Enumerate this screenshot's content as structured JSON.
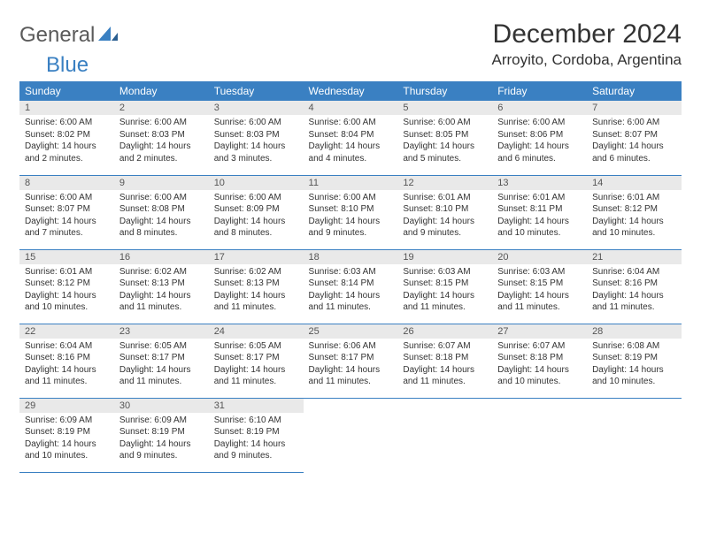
{
  "brand": {
    "part1": "General",
    "part2": "Blue"
  },
  "title": "December 2024",
  "location": "Arroyito, Cordoba, Argentina",
  "colors": {
    "header_bg": "#3a80c2",
    "header_text": "#ffffff",
    "daynum_bg": "#e9e9e9",
    "cell_border": "#3a80c2",
    "body_text": "#333333"
  },
  "font": {
    "family": "Arial",
    "header_size_pt": 9,
    "cell_size_pt": 7.5,
    "title_size_pt": 22.5,
    "location_size_pt": 12.8
  },
  "day_headers": [
    "Sunday",
    "Monday",
    "Tuesday",
    "Wednesday",
    "Thursday",
    "Friday",
    "Saturday"
  ],
  "weeks": [
    [
      {
        "day": "1",
        "sunrise": "Sunrise: 6:00 AM",
        "sunset": "Sunset: 8:02 PM",
        "daylight": "Daylight: 14 hours and 2 minutes."
      },
      {
        "day": "2",
        "sunrise": "Sunrise: 6:00 AM",
        "sunset": "Sunset: 8:03 PM",
        "daylight": "Daylight: 14 hours and 2 minutes."
      },
      {
        "day": "3",
        "sunrise": "Sunrise: 6:00 AM",
        "sunset": "Sunset: 8:03 PM",
        "daylight": "Daylight: 14 hours and 3 minutes."
      },
      {
        "day": "4",
        "sunrise": "Sunrise: 6:00 AM",
        "sunset": "Sunset: 8:04 PM",
        "daylight": "Daylight: 14 hours and 4 minutes."
      },
      {
        "day": "5",
        "sunrise": "Sunrise: 6:00 AM",
        "sunset": "Sunset: 8:05 PM",
        "daylight": "Daylight: 14 hours and 5 minutes."
      },
      {
        "day": "6",
        "sunrise": "Sunrise: 6:00 AM",
        "sunset": "Sunset: 8:06 PM",
        "daylight": "Daylight: 14 hours and 6 minutes."
      },
      {
        "day": "7",
        "sunrise": "Sunrise: 6:00 AM",
        "sunset": "Sunset: 8:07 PM",
        "daylight": "Daylight: 14 hours and 6 minutes."
      }
    ],
    [
      {
        "day": "8",
        "sunrise": "Sunrise: 6:00 AM",
        "sunset": "Sunset: 8:07 PM",
        "daylight": "Daylight: 14 hours and 7 minutes."
      },
      {
        "day": "9",
        "sunrise": "Sunrise: 6:00 AM",
        "sunset": "Sunset: 8:08 PM",
        "daylight": "Daylight: 14 hours and 8 minutes."
      },
      {
        "day": "10",
        "sunrise": "Sunrise: 6:00 AM",
        "sunset": "Sunset: 8:09 PM",
        "daylight": "Daylight: 14 hours and 8 minutes."
      },
      {
        "day": "11",
        "sunrise": "Sunrise: 6:00 AM",
        "sunset": "Sunset: 8:10 PM",
        "daylight": "Daylight: 14 hours and 9 minutes."
      },
      {
        "day": "12",
        "sunrise": "Sunrise: 6:01 AM",
        "sunset": "Sunset: 8:10 PM",
        "daylight": "Daylight: 14 hours and 9 minutes."
      },
      {
        "day": "13",
        "sunrise": "Sunrise: 6:01 AM",
        "sunset": "Sunset: 8:11 PM",
        "daylight": "Daylight: 14 hours and 10 minutes."
      },
      {
        "day": "14",
        "sunrise": "Sunrise: 6:01 AM",
        "sunset": "Sunset: 8:12 PM",
        "daylight": "Daylight: 14 hours and 10 minutes."
      }
    ],
    [
      {
        "day": "15",
        "sunrise": "Sunrise: 6:01 AM",
        "sunset": "Sunset: 8:12 PM",
        "daylight": "Daylight: 14 hours and 10 minutes."
      },
      {
        "day": "16",
        "sunrise": "Sunrise: 6:02 AM",
        "sunset": "Sunset: 8:13 PM",
        "daylight": "Daylight: 14 hours and 11 minutes."
      },
      {
        "day": "17",
        "sunrise": "Sunrise: 6:02 AM",
        "sunset": "Sunset: 8:13 PM",
        "daylight": "Daylight: 14 hours and 11 minutes."
      },
      {
        "day": "18",
        "sunrise": "Sunrise: 6:03 AM",
        "sunset": "Sunset: 8:14 PM",
        "daylight": "Daylight: 14 hours and 11 minutes."
      },
      {
        "day": "19",
        "sunrise": "Sunrise: 6:03 AM",
        "sunset": "Sunset: 8:15 PM",
        "daylight": "Daylight: 14 hours and 11 minutes."
      },
      {
        "day": "20",
        "sunrise": "Sunrise: 6:03 AM",
        "sunset": "Sunset: 8:15 PM",
        "daylight": "Daylight: 14 hours and 11 minutes."
      },
      {
        "day": "21",
        "sunrise": "Sunrise: 6:04 AM",
        "sunset": "Sunset: 8:16 PM",
        "daylight": "Daylight: 14 hours and 11 minutes."
      }
    ],
    [
      {
        "day": "22",
        "sunrise": "Sunrise: 6:04 AM",
        "sunset": "Sunset: 8:16 PM",
        "daylight": "Daylight: 14 hours and 11 minutes."
      },
      {
        "day": "23",
        "sunrise": "Sunrise: 6:05 AM",
        "sunset": "Sunset: 8:17 PM",
        "daylight": "Daylight: 14 hours and 11 minutes."
      },
      {
        "day": "24",
        "sunrise": "Sunrise: 6:05 AM",
        "sunset": "Sunset: 8:17 PM",
        "daylight": "Daylight: 14 hours and 11 minutes."
      },
      {
        "day": "25",
        "sunrise": "Sunrise: 6:06 AM",
        "sunset": "Sunset: 8:17 PM",
        "daylight": "Daylight: 14 hours and 11 minutes."
      },
      {
        "day": "26",
        "sunrise": "Sunrise: 6:07 AM",
        "sunset": "Sunset: 8:18 PM",
        "daylight": "Daylight: 14 hours and 11 minutes."
      },
      {
        "day": "27",
        "sunrise": "Sunrise: 6:07 AM",
        "sunset": "Sunset: 8:18 PM",
        "daylight": "Daylight: 14 hours and 10 minutes."
      },
      {
        "day": "28",
        "sunrise": "Sunrise: 6:08 AM",
        "sunset": "Sunset: 8:19 PM",
        "daylight": "Daylight: 14 hours and 10 minutes."
      }
    ],
    [
      {
        "day": "29",
        "sunrise": "Sunrise: 6:09 AM",
        "sunset": "Sunset: 8:19 PM",
        "daylight": "Daylight: 14 hours and 10 minutes."
      },
      {
        "day": "30",
        "sunrise": "Sunrise: 6:09 AM",
        "sunset": "Sunset: 8:19 PM",
        "daylight": "Daylight: 14 hours and 9 minutes."
      },
      {
        "day": "31",
        "sunrise": "Sunrise: 6:10 AM",
        "sunset": "Sunset: 8:19 PM",
        "daylight": "Daylight: 14 hours and 9 minutes."
      },
      null,
      null,
      null,
      null
    ]
  ]
}
